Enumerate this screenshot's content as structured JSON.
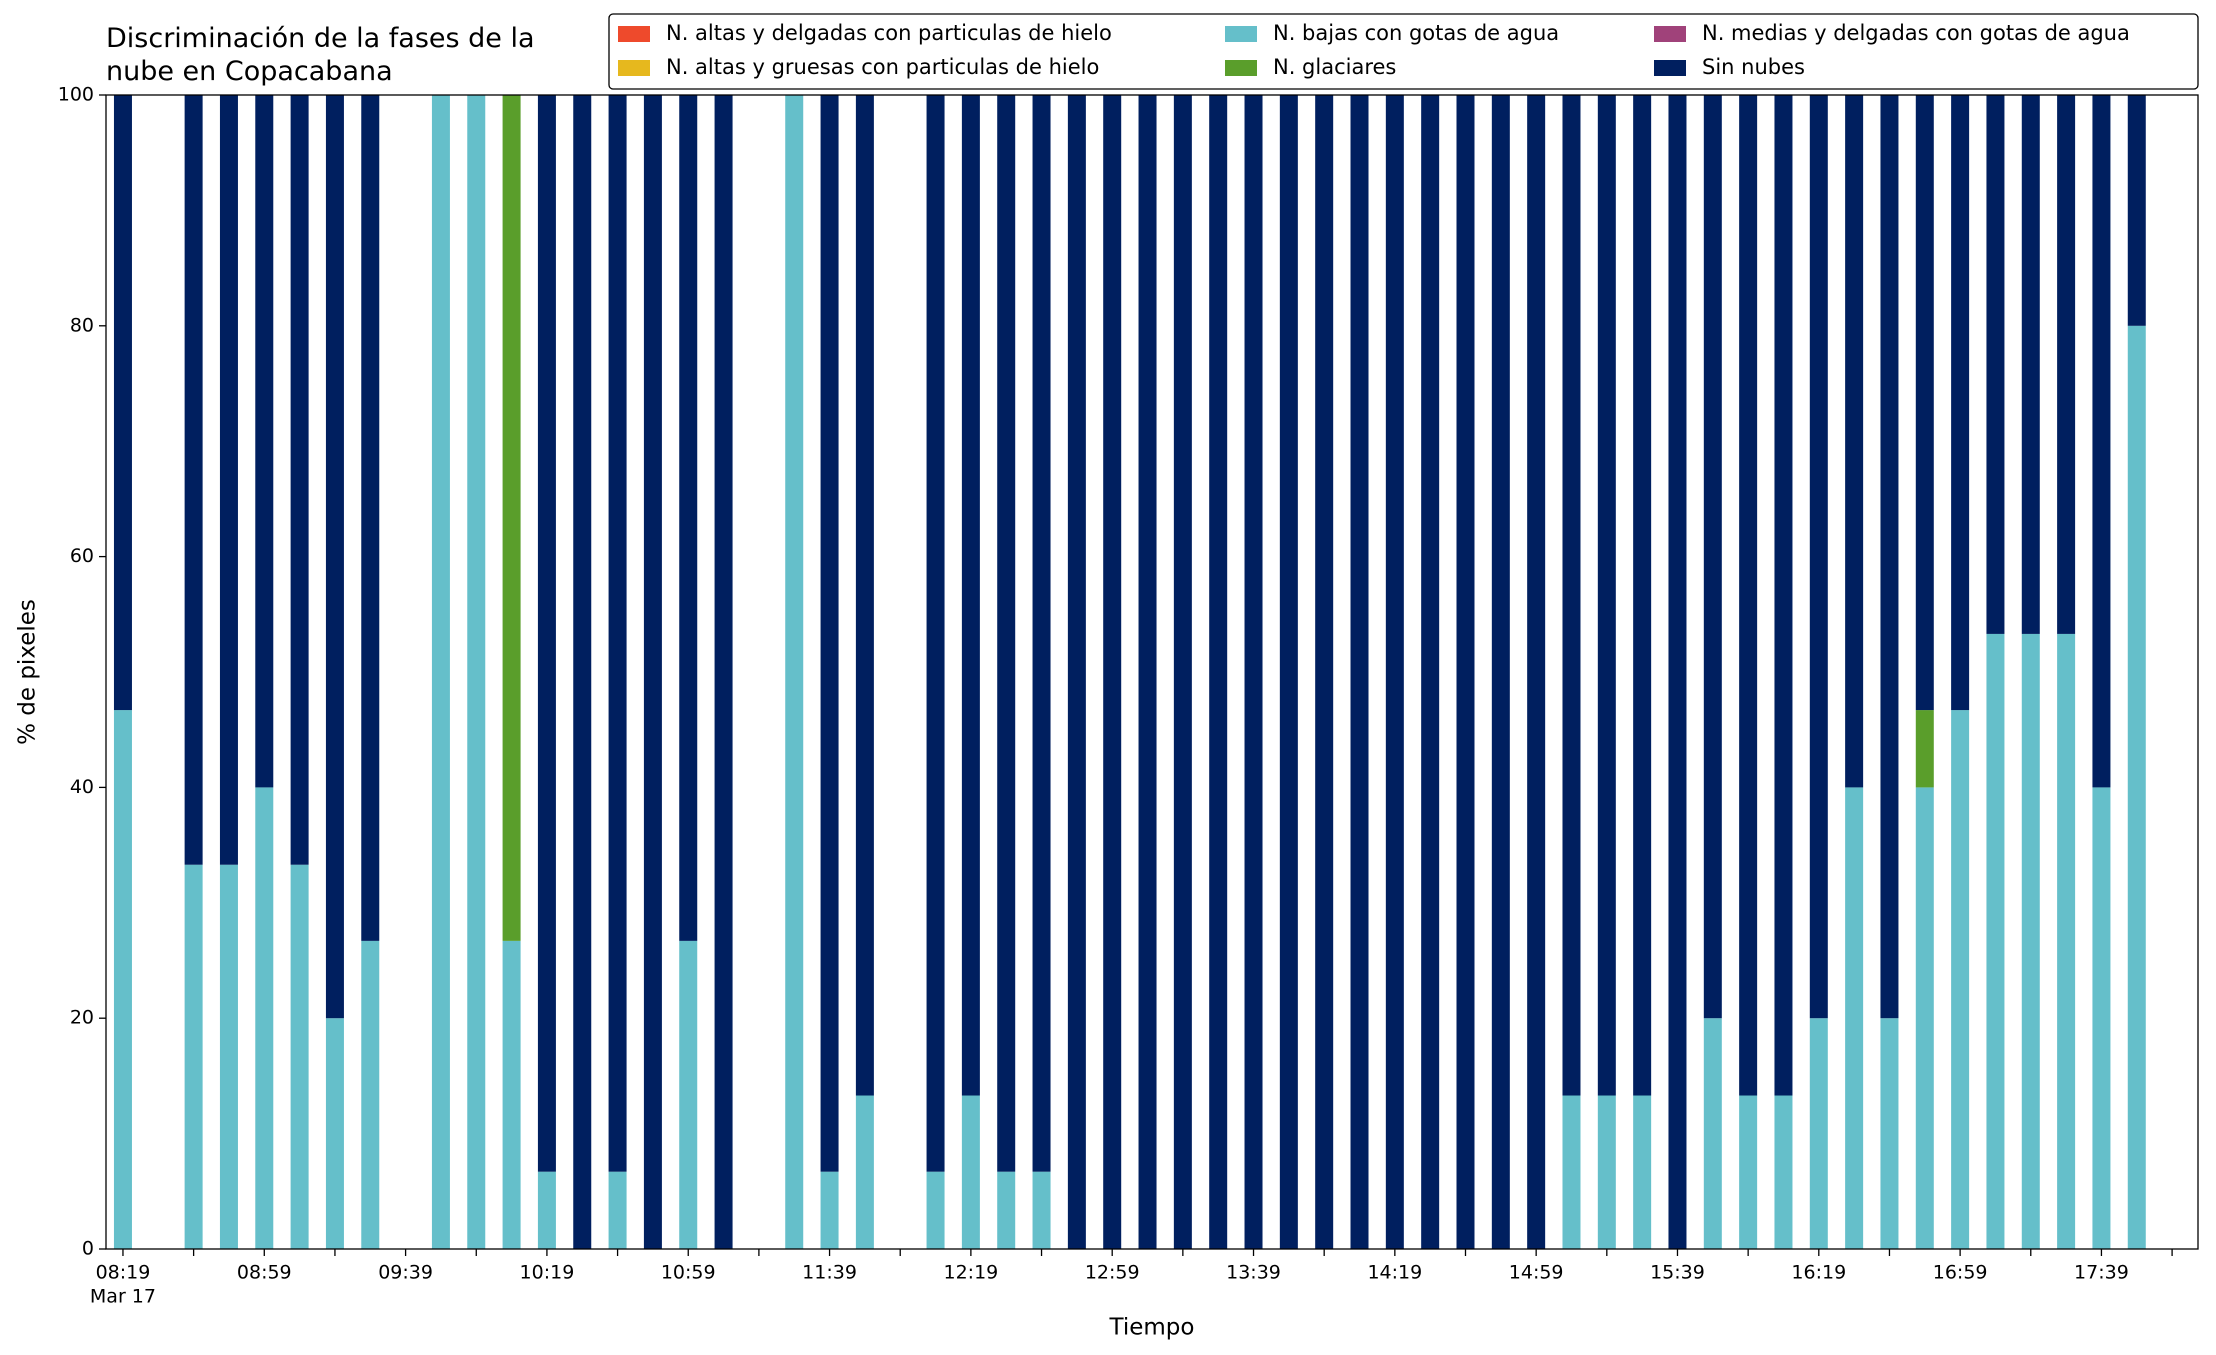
{
  "chart_data": {
    "type": "stacked_bar",
    "title": "Discriminación de la fases de la\nnube en Copacabana",
    "x_label": "Tiempo",
    "y_label": "% de pixeles",
    "x_sublabel": "Mar 17",
    "categories": [
      "08:19",
      null,
      null,
      null,
      "08:59",
      null,
      null,
      null,
      "09:39",
      null,
      null,
      null,
      "10:19",
      null,
      null,
      null,
      "10:59",
      null,
      null,
      null,
      "11:39",
      null,
      null,
      null,
      "12:19",
      null,
      null,
      null,
      "12:59",
      null,
      null,
      null,
      "13:39",
      null,
      null,
      null,
      "14:19",
      null,
      null,
      null,
      "14:59",
      null,
      null,
      null,
      "15:39",
      null,
      null,
      null,
      "16:19",
      null,
      null,
      null,
      "16:59",
      null,
      null,
      null,
      "17:39",
      null
    ],
    "ylim": [
      0,
      100
    ],
    "yticks": [
      0,
      20,
      40,
      60,
      80,
      100
    ],
    "legend": "top",
    "series": [
      {
        "name": "N. altas y delgadas con particulas de hielo",
        "color": "#ee4a2c",
        "values": [
          0,
          null,
          0,
          0,
          0,
          0,
          0,
          0,
          null,
          0,
          0,
          0,
          0,
          0,
          0,
          0,
          0,
          0,
          null,
          0,
          0,
          0,
          null,
          0,
          0,
          0,
          0,
          0,
          0,
          0,
          0,
          0,
          0,
          0,
          0,
          0,
          0,
          0,
          0,
          0,
          0,
          0,
          0,
          0,
          0,
          0,
          0,
          0,
          0,
          0,
          0,
          0,
          0,
          0,
          0,
          0,
          0,
          0
        ]
      },
      {
        "name": "N. altas y gruesas con particulas de hielo",
        "color": "#e6b81e",
        "values": [
          0,
          null,
          0,
          0,
          0,
          0,
          0,
          0,
          null,
          0,
          0,
          0,
          0,
          0,
          0,
          0,
          0,
          0,
          null,
          0,
          0,
          0,
          null,
          0,
          0,
          0,
          0,
          0,
          0,
          0,
          0,
          0,
          0,
          0,
          0,
          0,
          0,
          0,
          0,
          0,
          0,
          0,
          0,
          0,
          0,
          0,
          0,
          0,
          0,
          0,
          0,
          0,
          0,
          0,
          0,
          0,
          0,
          0
        ]
      },
      {
        "name": "N. bajas con gotas de agua",
        "color": "#65bfca",
        "values": [
          46.7,
          null,
          33.3,
          33.3,
          40,
          33.3,
          20,
          26.7,
          null,
          100,
          100,
          26.7,
          6.7,
          0,
          6.7,
          0,
          26.7,
          0,
          null,
          100,
          6.7,
          13.3,
          null,
          6.7,
          13.3,
          6.7,
          6.7,
          0,
          0,
          0,
          0,
          0,
          0,
          0,
          0,
          0,
          0,
          0,
          0,
          0,
          0,
          13.3,
          13.3,
          13.3,
          0,
          20,
          13.3,
          13.3,
          20,
          40,
          20,
          40,
          46.7,
          53.3,
          53.3,
          53.3,
          40,
          80
        ]
      },
      {
        "name": "N. glaciares",
        "color": "#5a9e2b",
        "values": [
          0,
          null,
          0,
          0,
          0,
          0,
          0,
          0,
          null,
          0,
          0,
          73.3,
          0,
          0,
          0,
          0,
          0,
          0,
          null,
          0,
          0,
          0,
          null,
          0,
          0,
          0,
          0,
          0,
          0,
          0,
          0,
          0,
          0,
          0,
          0,
          0,
          0,
          0,
          0,
          0,
          0,
          0,
          0,
          0,
          0,
          0,
          0,
          0,
          0,
          0,
          0,
          6.7,
          0,
          0,
          0,
          0,
          0,
          0
        ]
      },
      {
        "name": "N. medias y delgadas con gotas de agua",
        "color": "#a0427a",
        "values": [
          0,
          null,
          0,
          0,
          0,
          0,
          0,
          0,
          null,
          0,
          0,
          0,
          0,
          0,
          0,
          0,
          0,
          0,
          null,
          0,
          0,
          0,
          null,
          0,
          0,
          0,
          0,
          0,
          0,
          0,
          0,
          0,
          0,
          0,
          0,
          0,
          0,
          0,
          0,
          0,
          0,
          0,
          0,
          0,
          0,
          0,
          0,
          0,
          0,
          0,
          0,
          0,
          0,
          0,
          0,
          0,
          0,
          0
        ]
      },
      {
        "name": "Sin nubes",
        "color": "#001f5f",
        "values": [
          53.3,
          null,
          66.7,
          66.7,
          60,
          66.7,
          80,
          73.3,
          null,
          0,
          0,
          0,
          93.3,
          100,
          93.3,
          100,
          73.3,
          100,
          null,
          0,
          93.3,
          86.7,
          null,
          93.3,
          86.7,
          93.3,
          93.3,
          100,
          100,
          100,
          100,
          100,
          100,
          100,
          100,
          100,
          100,
          100,
          100,
          100,
          100,
          86.7,
          86.7,
          86.7,
          100,
          80,
          86.7,
          86.7,
          80,
          60,
          80,
          53.3,
          53.3,
          46.7,
          46.7,
          46.7,
          60,
          20
        ]
      }
    ]
  }
}
